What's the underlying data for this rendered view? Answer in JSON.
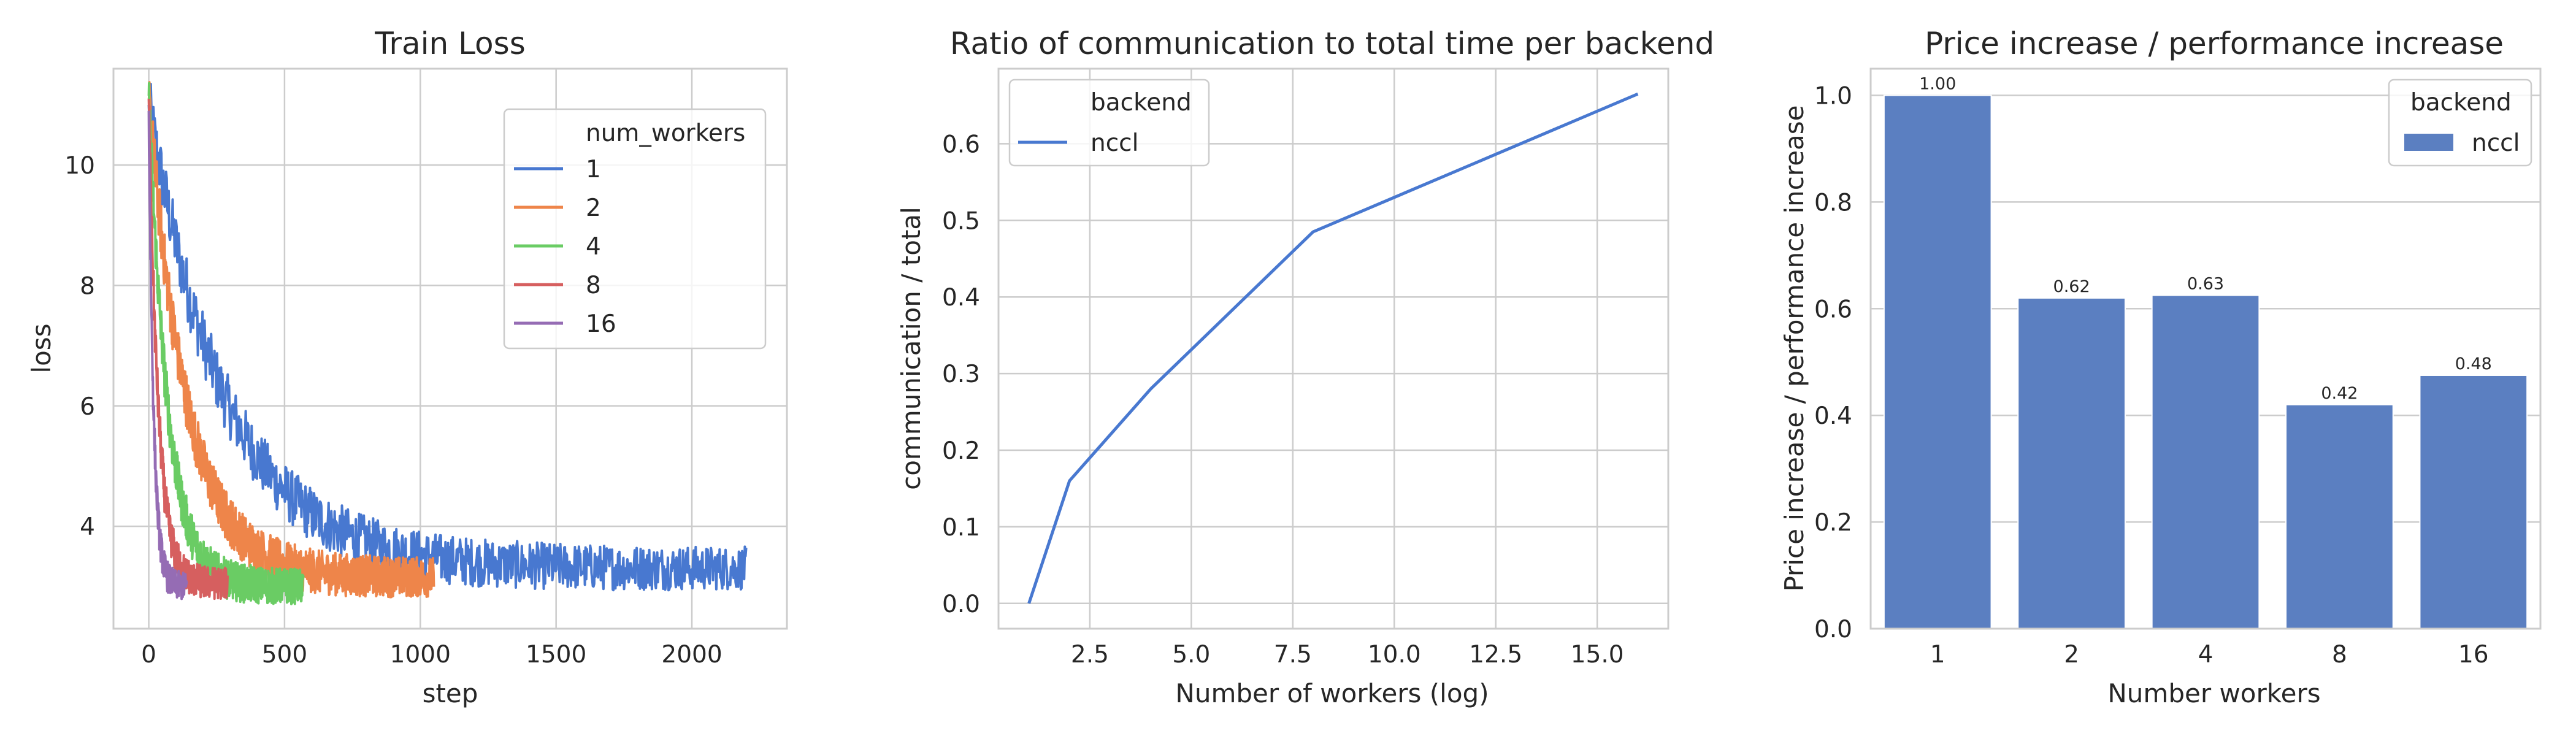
{
  "colors": {
    "blue": "#4878d0",
    "orange": "#ee854a",
    "green": "#6acc64",
    "red": "#d65f5f",
    "purple": "#956cb4",
    "bar": "#5b7fc1"
  },
  "chart_data": [
    {
      "type": "line",
      "title": "Train Loss",
      "xlabel": "step",
      "ylabel": "loss",
      "xlim": [
        -130,
        2350
      ],
      "ylim": [
        2.3,
        11.6
      ],
      "xticks": [
        0,
        500,
        1000,
        1500,
        2000
      ],
      "yticks": [
        4,
        6,
        8,
        10
      ],
      "grid": true,
      "legend_placement": "upper-right",
      "legend_title": "num_workers",
      "series": [
        {
          "name": "1",
          "color_key": "blue",
          "max_step": 2200,
          "start": 11.0,
          "plateau": 3.3,
          "decay": 280,
          "noise": 0.55
        },
        {
          "name": "2",
          "color_key": "orange",
          "max_step": 1050,
          "start": 11.1,
          "plateau": 3.15,
          "decay": 140,
          "noise": 0.5
        },
        {
          "name": "4",
          "color_key": "green",
          "max_step": 570,
          "start": 11.15,
          "plateau": 3.0,
          "decay": 70,
          "noise": 0.45
        },
        {
          "name": "8",
          "color_key": "red",
          "max_step": 290,
          "start": 11.1,
          "plateau": 3.05,
          "decay": 35,
          "noise": 0.4
        },
        {
          "name": "16",
          "color_key": "purple",
          "max_step": 140,
          "start": 10.9,
          "plateau": 3.0,
          "decay": 18,
          "noise": 0.35
        }
      ]
    },
    {
      "type": "line",
      "title": "Ratio of communication to total time per backend",
      "xlabel": "Number of workers (log)",
      "ylabel": "communication / total",
      "xlim": [
        0.25,
        16.75
      ],
      "ylim": [
        -0.033,
        0.698
      ],
      "xticks": [
        2.5,
        5.0,
        7.5,
        10.0,
        12.5,
        15.0
      ],
      "xtick_labels": [
        "2.5",
        "5.0",
        "7.5",
        "10.0",
        "12.5",
        "15.0"
      ],
      "yticks": [
        0.0,
        0.1,
        0.2,
        0.3,
        0.4,
        0.5,
        0.6
      ],
      "ytick_labels": [
        "0.0",
        "0.1",
        "0.2",
        "0.3",
        "0.4",
        "0.5",
        "0.6"
      ],
      "grid": true,
      "legend_placement": "upper-left",
      "legend_title": "backend",
      "series": [
        {
          "name": "nccl",
          "color_key": "blue",
          "x": [
            1,
            2,
            4,
            8,
            16
          ],
          "y": [
            0.0,
            0.16,
            0.28,
            0.485,
            0.665
          ]
        }
      ]
    },
    {
      "type": "bar",
      "title": "Price increase / performance increase",
      "xlabel": "Number workers",
      "ylabel": "Price increase / performance increase",
      "categories": [
        "1",
        "2",
        "4",
        "8",
        "16"
      ],
      "ylim": [
        0.0,
        1.05
      ],
      "yticks": [
        0.0,
        0.2,
        0.4,
        0.6,
        0.8,
        1.0
      ],
      "ytick_labels": [
        "0.0",
        "0.2",
        "0.4",
        "0.6",
        "0.8",
        "1.0"
      ],
      "grid": true,
      "legend_placement": "upper-right",
      "legend_title": "backend",
      "series": [
        {
          "name": "nccl",
          "color_key": "bar",
          "values": [
            1.0,
            0.62,
            0.625,
            0.42,
            0.475
          ],
          "labels": [
            "1.00",
            "0.62",
            "0.63",
            "0.42",
            "0.48"
          ]
        }
      ]
    }
  ]
}
